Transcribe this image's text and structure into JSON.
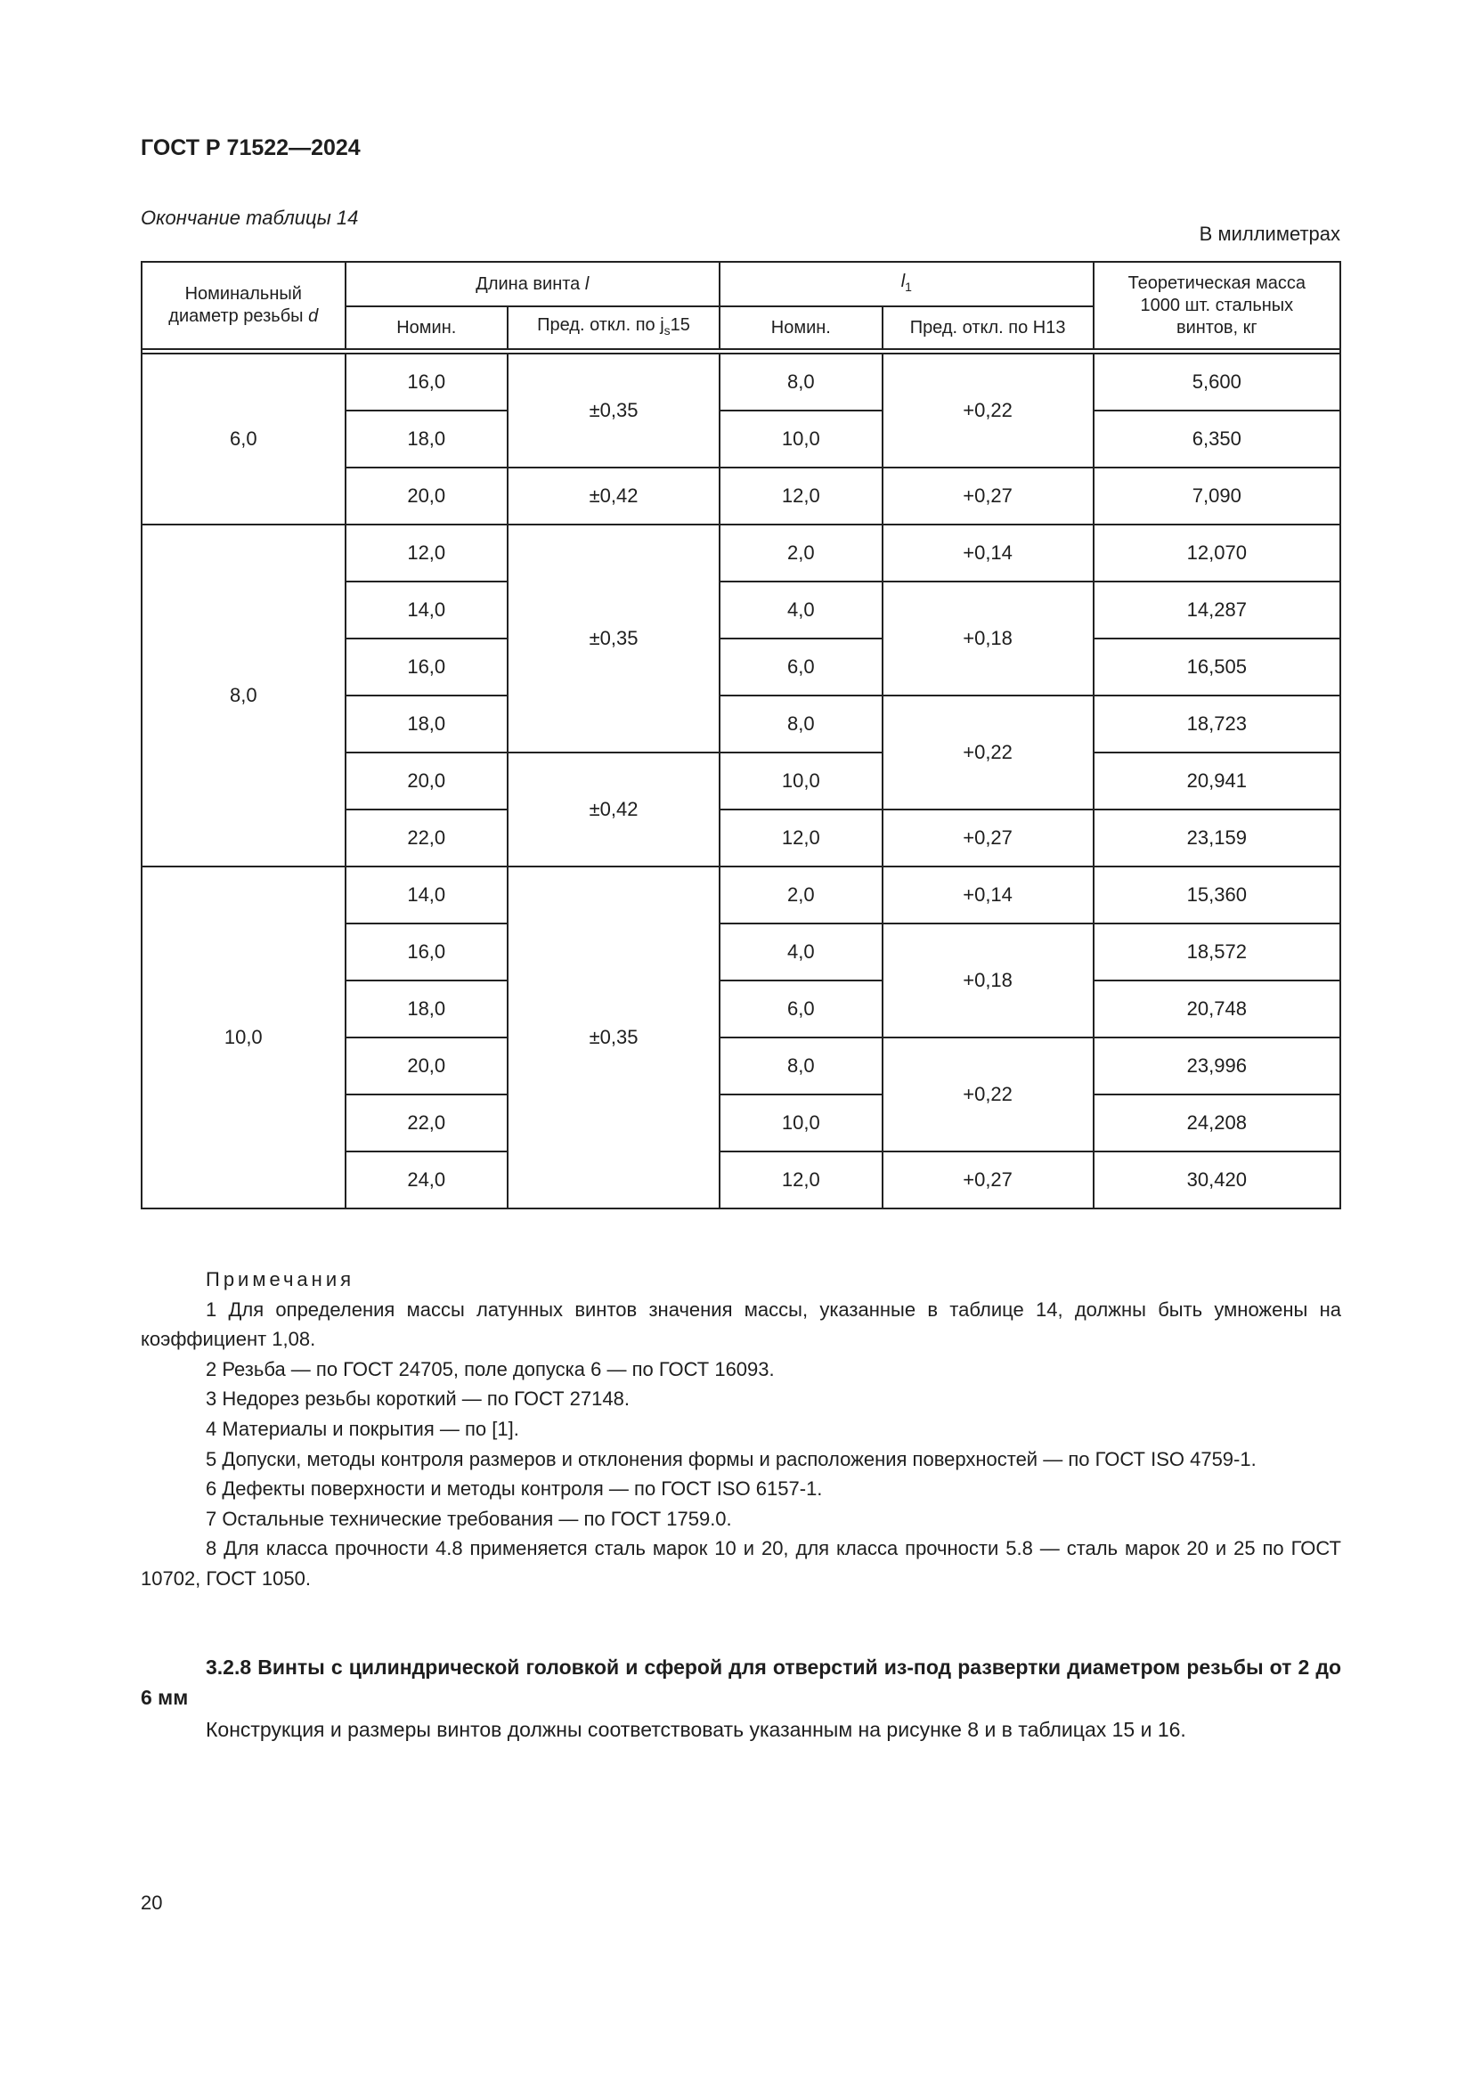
{
  "header": {
    "doc_id": "ГОСТ Р 71522—2024",
    "continuation": "Окончание таблицы 14",
    "units": "В миллиметрах"
  },
  "table": {
    "headers": {
      "d": "Номинальный диаметр резьбы d",
      "l_group": "Длина винта l",
      "l1_group": "l1",
      "mass": "Теоретическая масса 1000 шт. стальных винтов, кг",
      "l_nom": "Номин.",
      "l_tol": "Пред. откл. по js15",
      "l1_nom": "Номин.",
      "l1_tol": "Пред. откл. по H13"
    },
    "groups": [
      {
        "d": "6,0",
        "rows": [
          {
            "l": "16,0",
            "l1": "8,0",
            "mass": "5,600"
          },
          {
            "l": "18,0",
            "l1": "10,0",
            "mass": "6,350"
          },
          {
            "l": "20,0",
            "l1": "12,0",
            "mass": "7,090"
          }
        ],
        "l_tol": [
          {
            "value": "±0,35",
            "span": 2
          },
          {
            "value": "±0,42",
            "span": 1
          }
        ],
        "l1_tol": [
          {
            "value": "+0,22",
            "span": 2
          },
          {
            "value": "+0,27",
            "span": 1
          }
        ]
      },
      {
        "d": "8,0",
        "rows": [
          {
            "l": "12,0",
            "l1": "2,0",
            "mass": "12,070"
          },
          {
            "l": "14,0",
            "l1": "4,0",
            "mass": "14,287"
          },
          {
            "l": "16,0",
            "l1": "6,0",
            "mass": "16,505"
          },
          {
            "l": "18,0",
            "l1": "8,0",
            "mass": "18,723"
          },
          {
            "l": "20,0",
            "l1": "10,0",
            "mass": "20,941"
          },
          {
            "l": "22,0",
            "l1": "12,0",
            "mass": "23,159"
          }
        ],
        "l_tol": [
          {
            "value": "±0,35",
            "span": 4
          },
          {
            "value": "±0,42",
            "span": 2
          }
        ],
        "l1_tol": [
          {
            "value": "+0,14",
            "span": 1
          },
          {
            "value": "+0,18",
            "span": 2
          },
          {
            "value": "+0,22",
            "span": 2
          },
          {
            "value": "+0,27",
            "span": 1
          }
        ]
      },
      {
        "d": "10,0",
        "rows": [
          {
            "l": "14,0",
            "l1": "2,0",
            "mass": "15,360"
          },
          {
            "l": "16,0",
            "l1": "4,0",
            "mass": "18,572"
          },
          {
            "l": "18,0",
            "l1": "6,0",
            "mass": "20,748"
          },
          {
            "l": "20,0",
            "l1": "8,0",
            "mass": "23,996"
          },
          {
            "l": "22,0",
            "l1": "10,0",
            "mass": "24,208"
          },
          {
            "l": "24,0",
            "l1": "12,0",
            "mass": "30,420"
          }
        ],
        "l_tol": [
          {
            "value": "±0,35",
            "span": 6
          }
        ],
        "l1_tol": [
          {
            "value": "+0,14",
            "span": 1
          },
          {
            "value": "+0,18",
            "span": 2
          },
          {
            "value": "+0,22",
            "span": 2
          },
          {
            "value": "+0,27",
            "span": 1
          }
        ]
      }
    ]
  },
  "notes": {
    "title": "Примечания",
    "items": [
      "1 Для определения массы латунных винтов значения массы, указанные в таблице 14, должны быть умножены на коэффициент 1,08.",
      "2 Резьба — по ГОСТ 24705, поле допуска 6 — по ГОСТ 16093.",
      "3 Недорез резьбы короткий — по ГОСТ 27148.",
      "4 Материалы и покрытия — по [1].",
      "5 Допуски, методы контроля размеров и отклонения формы и расположения поверхностей — по ГОСТ ISO 4759-1.",
      "6 Дефекты поверхности и методы контроля — по ГОСТ ISO 6157-1.",
      "7 Остальные технические требования — по ГОСТ 1759.0.",
      "8 Для класса прочности 4.8 применяется сталь марок 10 и 20, для класса прочности 5.8 — сталь марок 20 и 25 по ГОСТ 10702, ГОСТ 1050."
    ]
  },
  "section": {
    "heading": "3.2.8 Винты с цилиндрической головкой и сферой для отверстий из-под развертки диаметром резьбы от 2 до 6 мм",
    "text": "Конструкция и размеры винтов должны соответствовать указанным на рисунке 8 и в таблицах 15 и 16."
  },
  "footer": {
    "page_number": "20"
  }
}
